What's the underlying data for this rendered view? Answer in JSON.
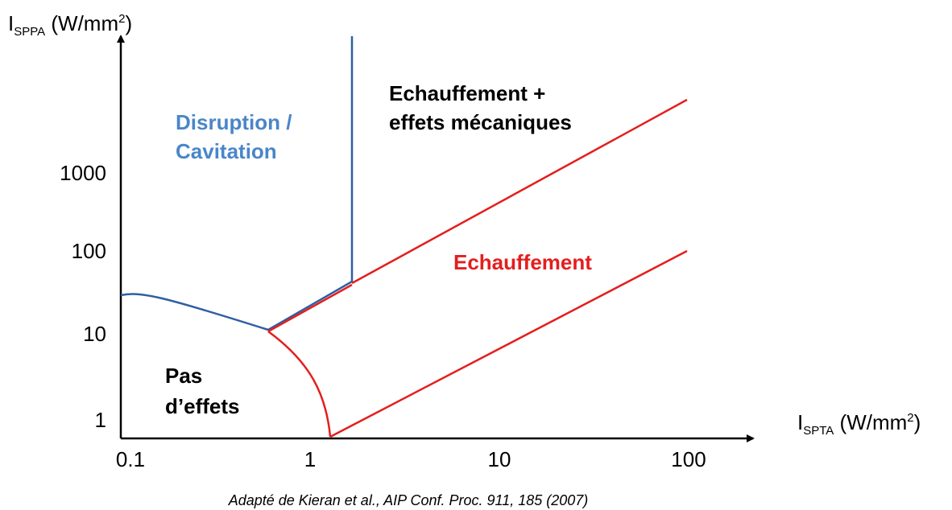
{
  "y_axis": {
    "title_parts": [
      "I",
      "SPPA",
      " (W/mm",
      "2",
      ")"
    ],
    "ticks": [
      "1000",
      "100",
      "10",
      "1"
    ]
  },
  "x_axis": {
    "title_parts": [
      "I",
      "SPTA",
      " (W/mm",
      "2",
      ")"
    ],
    "ticks": [
      "0.1",
      "1",
      "10",
      "100"
    ]
  },
  "regions": {
    "disruption": [
      "Disruption /",
      "Cavitation"
    ],
    "mixed": [
      "Echauffement +",
      "effets mécaniques"
    ],
    "heating": "Echauffement",
    "none": [
      "Pas",
      "d’effets"
    ]
  },
  "caption": "Adapté de Kieran et al., AIP Conf. Proc. 911, 185 (2007)"
}
